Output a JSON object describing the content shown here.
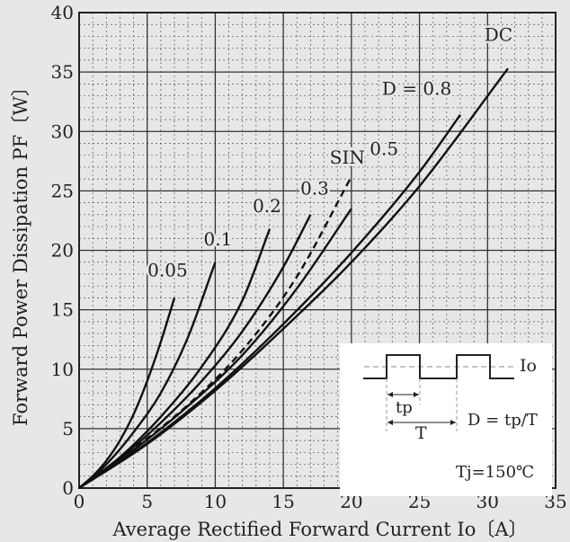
{
  "chart_data": {
    "type": "line",
    "xlabel": "Average Rectified Forward Current  Io〔A〕",
    "ylabel": "Forward Power Dissipation  PF〔W〕",
    "xlim": [
      0,
      35
    ],
    "ylim": [
      0,
      40
    ],
    "xticks": [
      0,
      5,
      10,
      15,
      20,
      25,
      30,
      35
    ],
    "yticks": [
      0,
      5,
      10,
      15,
      20,
      25,
      30,
      35,
      40
    ],
    "grid": "major and minor",
    "series": [
      {
        "name": "0.05",
        "dash": false,
        "x": [
          0,
          1,
          2,
          3,
          4,
          5,
          6,
          7
        ],
        "y": [
          0,
          1.0,
          2.3,
          4.0,
          6.2,
          9.0,
          12.3,
          16.0
        ]
      },
      {
        "name": "0.1",
        "dash": false,
        "x": [
          0,
          2,
          4,
          6,
          8,
          10
        ],
        "y": [
          0,
          2.0,
          4.7,
          8.0,
          12.7,
          19.0
        ]
      },
      {
        "name": "0.2",
        "dash": false,
        "x": [
          0,
          3,
          6,
          9,
          12,
          14
        ],
        "y": [
          0,
          2.6,
          6.0,
          10.2,
          15.8,
          21.8
        ]
      },
      {
        "name": "0.3",
        "dash": false,
        "x": [
          0,
          3,
          6,
          9,
          12,
          15,
          17
        ],
        "y": [
          0,
          2.5,
          5.5,
          9.0,
          13.2,
          18.6,
          23.0
        ]
      },
      {
        "name": "SIN",
        "dash": true,
        "x": [
          0,
          4,
          8,
          12,
          16,
          20
        ],
        "y": [
          0,
          3.3,
          7.0,
          11.6,
          17.8,
          26.2
        ]
      },
      {
        "name": "0.5",
        "dash": false,
        "x": [
          0,
          4,
          8,
          12,
          16,
          20
        ],
        "y": [
          0,
          3.2,
          6.9,
          11.2,
          16.8,
          23.5
        ]
      },
      {
        "name": "D = 0.8",
        "dash": false,
        "x": [
          0,
          5,
          10,
          15,
          20,
          25,
          28
        ],
        "y": [
          0,
          3.8,
          8.4,
          13.8,
          19.8,
          26.6,
          31.4
        ]
      },
      {
        "name": "DC",
        "dash": false,
        "x": [
          0,
          5,
          10,
          15,
          20,
          25,
          31.5
        ],
        "y": [
          0,
          3.7,
          8.2,
          13.4,
          19.0,
          25.4,
          35.3
        ]
      }
    ],
    "annotations": [
      {
        "text": "0.05",
        "x": 6.5,
        "y": 17.8
      },
      {
        "text": "0.1",
        "x": 10.2,
        "y": 20.4
      },
      {
        "text": "0.2",
        "x": 13.8,
        "y": 23.2
      },
      {
        "text": "0.3",
        "x": 17.3,
        "y": 24.7
      },
      {
        "text": "SIN",
        "x": 19.7,
        "y": 27.3
      },
      {
        "text": "0.5",
        "x": 22.4,
        "y": 28.0
      },
      {
        "text": "D = 0.8",
        "x": 24.8,
        "y": 33.1
      },
      {
        "text": "DC",
        "x": 30.8,
        "y": 37.6
      }
    ],
    "inset": {
      "io_label": "Io",
      "tp_label": "tp",
      "t_label": "T",
      "formula": "D = tp/T",
      "condition": "Tj=150℃"
    }
  }
}
